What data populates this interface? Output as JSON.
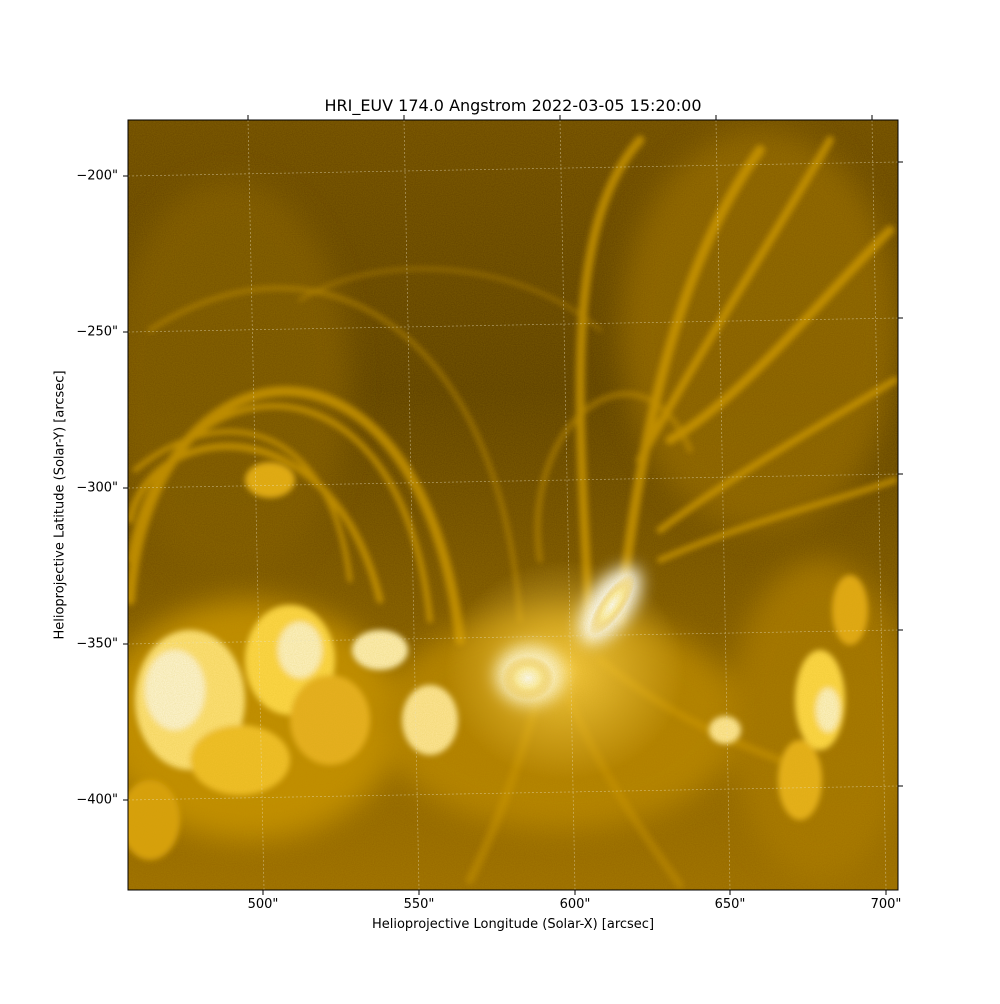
{
  "figure": {
    "title": "HRI_EUV 174.0 Angstrom 2022-03-05 15:20:00",
    "x_axis_label": "Helioprojective Longitude (Solar-X) [arcsec]",
    "y_axis_label": "Helioprojective Latitude (Solar-Y) [arcsec]",
    "x_ticks": [
      "500\"",
      "550\"",
      "600\"",
      "650\"",
      "700\""
    ],
    "y_ticks": [
      "−200\"",
      "−250\"",
      "−300\"",
      "−350\"",
      "−400\""
    ],
    "colormap": [
      "#3d2900",
      "#7a5300",
      "#b88400",
      "#e6a800",
      "#ffd24a",
      "#ffffff"
    ],
    "grid_color": "#e8e0c0",
    "frame_color": "#000000"
  }
}
